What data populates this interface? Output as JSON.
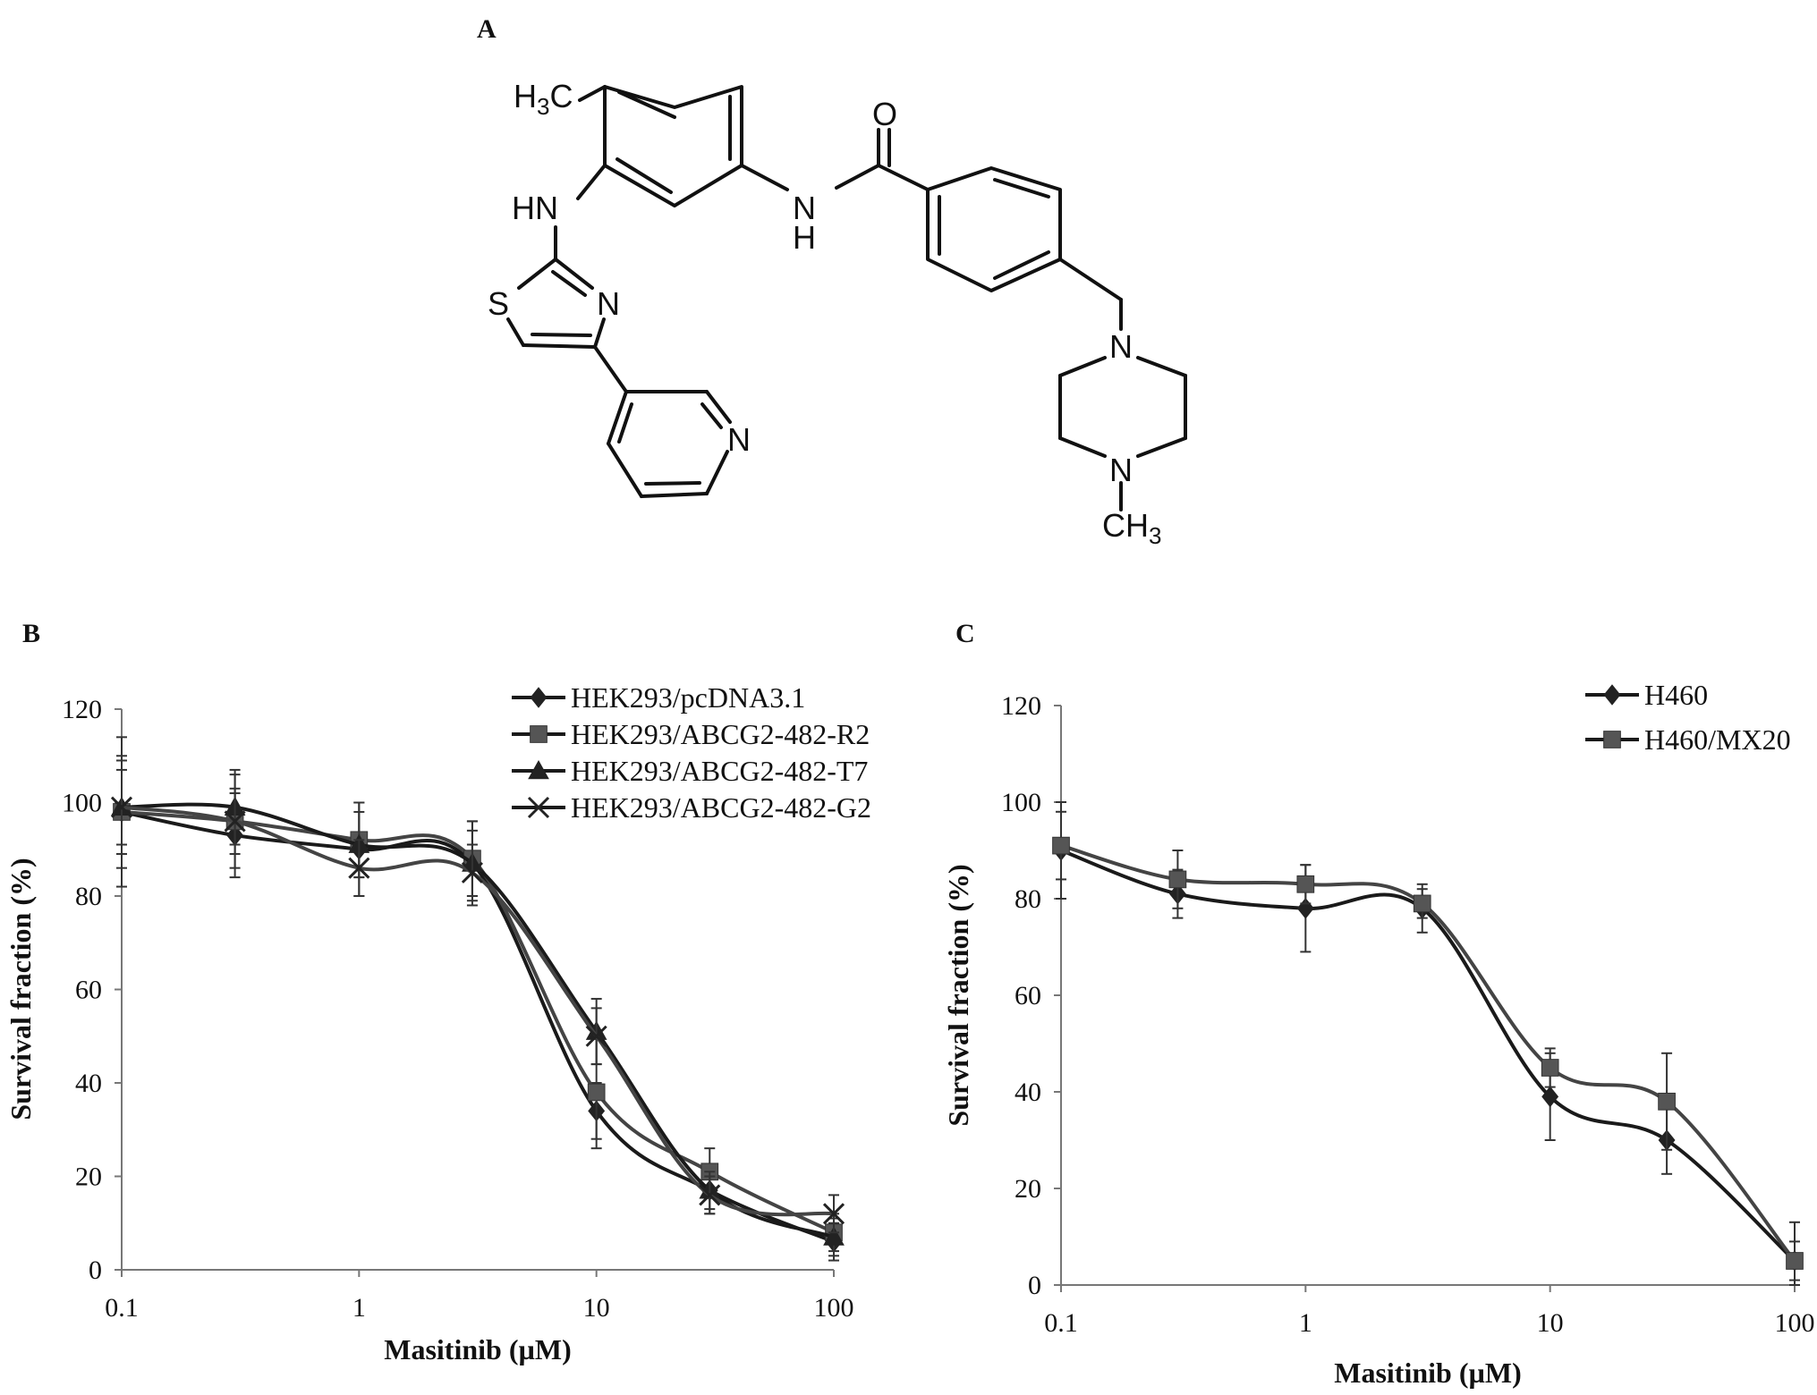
{
  "panels": {
    "a_label": "A",
    "b_label": "B",
    "c_label": "C"
  },
  "structure": {
    "atoms": {
      "h3c": "H",
      "h3c_sub": "3",
      "h3c_c": "C",
      "hn_left": "HN",
      "s": "S",
      "n_thiazole": "N",
      "n_pyridine": "N",
      "nh_amide": "N",
      "nh_amide_h": "H",
      "o": "O",
      "n_pip_top": "N",
      "n_pip_bottom": "N",
      "ch3_c": "CH",
      "ch3_sub": "3"
    }
  },
  "chart_data": [
    {
      "type": "line",
      "panel": "B",
      "xlabel": "Masitinib (µM)",
      "ylabel": "Survival fraction (%)",
      "xscale": "log",
      "xlim": [
        0.1,
        100
      ],
      "ylim": [
        0,
        120
      ],
      "x_ticks": [
        "0.1",
        "1",
        "10",
        "100"
      ],
      "y_ticks": [
        "0",
        "20",
        "40",
        "60",
        "80",
        "100",
        "120"
      ],
      "grid": false,
      "legend_position": "top-right",
      "x": [
        0.1,
        0.3,
        1,
        3,
        10,
        30,
        100
      ],
      "series": [
        {
          "name": "HEK293/pcDNA3.1",
          "marker": "diamond",
          "values": [
            98,
            93,
            90,
            87,
            34,
            17,
            6
          ],
          "errors": [
            16,
            9,
            10,
            9,
            6,
            5,
            4
          ]
        },
        {
          "name": "HEK293/ABCG2-482-R2",
          "marker": "square",
          "values": [
            98,
            96,
            92,
            88,
            38,
            21,
            8
          ],
          "errors": [
            12,
            10,
            8,
            8,
            12,
            5,
            4
          ]
        },
        {
          "name": "HEK293/ABCG2-482-T7",
          "marker": "triangle",
          "values": [
            99,
            99,
            91,
            87,
            51,
            17,
            7
          ],
          "errors": [
            10,
            8,
            7,
            7,
            7,
            4,
            4
          ]
        },
        {
          "name": "HEK293/ABCG2-482-G2",
          "marker": "x",
          "values": [
            99,
            96,
            86,
            85,
            50,
            16,
            12
          ],
          "errors": [
            8,
            7,
            6,
            6,
            6,
            4,
            4
          ]
        }
      ]
    },
    {
      "type": "line",
      "panel": "C",
      "xlabel": "Masitinib (µM)",
      "ylabel": "Survival fraction (%)",
      "xscale": "log",
      "xlim": [
        0.1,
        100
      ],
      "ylim": [
        0,
        120
      ],
      "x_ticks": [
        "0.1",
        "1",
        "10",
        "100"
      ],
      "y_ticks": [
        "0",
        "20",
        "40",
        "60",
        "80",
        "100",
        "120"
      ],
      "grid": false,
      "legend_position": "top-right",
      "x": [
        0.1,
        0.3,
        1,
        3,
        10,
        30,
        100
      ],
      "series": [
        {
          "name": "H460",
          "marker": "diamond",
          "values": [
            90,
            81,
            78,
            78,
            39,
            30,
            5
          ],
          "errors": [
            10,
            5,
            9,
            5,
            9,
            7,
            8
          ]
        },
        {
          "name": "H460/MX20",
          "marker": "square",
          "values": [
            91,
            84,
            83,
            79,
            45,
            38,
            5
          ],
          "errors": [
            7,
            6,
            4,
            3,
            4,
            10,
            4
          ]
        }
      ]
    }
  ]
}
